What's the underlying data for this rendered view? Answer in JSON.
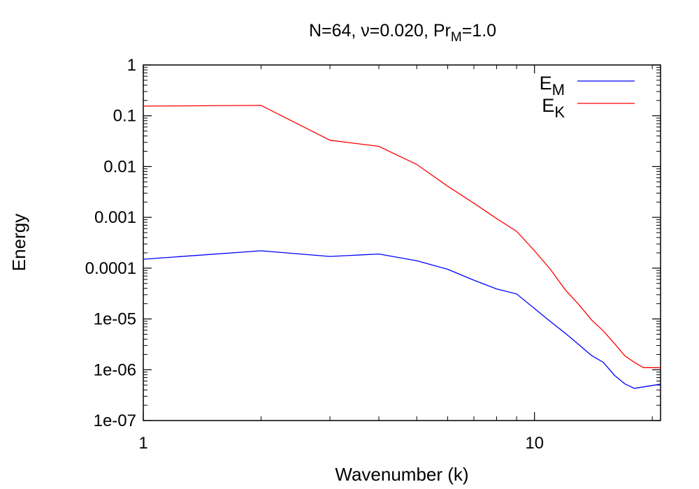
{
  "chart_data": {
    "type": "line",
    "title": {
      "prefix": "N=64, ",
      "nu_symbol": "ν",
      "nu_value": "=0.020, Pr",
      "pr_subscript": "M",
      "suffix": "=1.0"
    },
    "xlabel": "Wavenumber (k)",
    "ylabel": "Energy",
    "x_scale": "log",
    "y_scale": "log",
    "xlim": [
      1,
      21
    ],
    "ylim": [
      1e-07,
      1
    ],
    "x_ticks": [
      {
        "value": 1,
        "label": "1"
      },
      {
        "value": 10,
        "label": "10"
      }
    ],
    "y_ticks": [
      {
        "value": 1,
        "label": "1"
      },
      {
        "value": 0.1,
        "label": "0.1"
      },
      {
        "value": 0.01,
        "label": "0.01"
      },
      {
        "value": 0.001,
        "label": "0.001"
      },
      {
        "value": 0.0001,
        "label": "0.0001"
      },
      {
        "value": 1e-05,
        "label": "1e-05"
      },
      {
        "value": 1e-06,
        "label": "1e-06"
      },
      {
        "value": 1e-07,
        "label": "1e-07"
      }
    ],
    "grid": false,
    "legend_position": "top-right",
    "series": [
      {
        "name": "E_M",
        "legend_main": "E",
        "legend_sub": "M",
        "color": "#0000ff",
        "x": [
          1,
          2,
          3,
          4,
          5,
          6,
          7,
          8,
          9,
          10,
          11,
          12,
          13,
          14,
          15,
          16,
          17,
          18,
          19,
          20,
          21
        ],
        "y": [
          0.00015,
          0.00022,
          0.00017,
          0.00019,
          0.00014,
          9.5e-05,
          5.8e-05,
          3.9e-05,
          3.1e-05,
          1.6e-05,
          8.8e-06,
          5.2e-06,
          3.1e-06,
          1.9e-06,
          1.4e-06,
          7.8e-07,
          5.3e-07,
          4.3e-07,
          4.6e-07,
          4.9e-07,
          5.2e-07
        ]
      },
      {
        "name": "E_K",
        "legend_main": "E",
        "legend_sub": "K",
        "color": "#ff0000",
        "x": [
          1,
          2,
          3,
          4,
          5,
          6,
          7,
          8,
          9,
          10,
          11,
          12,
          13,
          14,
          15,
          16,
          17,
          18,
          19,
          20,
          21
        ],
        "y": [
          0.155,
          0.16,
          0.033,
          0.025,
          0.011,
          0.0041,
          0.0019,
          0.00095,
          0.00053,
          0.00022,
          9.3e-05,
          3.7e-05,
          1.9e-05,
          9.5e-06,
          5.8e-06,
          3.3e-06,
          1.9e-06,
          1.4e-06,
          1.1e-06,
          1.1e-06,
          1.1e-06
        ]
      }
    ]
  }
}
